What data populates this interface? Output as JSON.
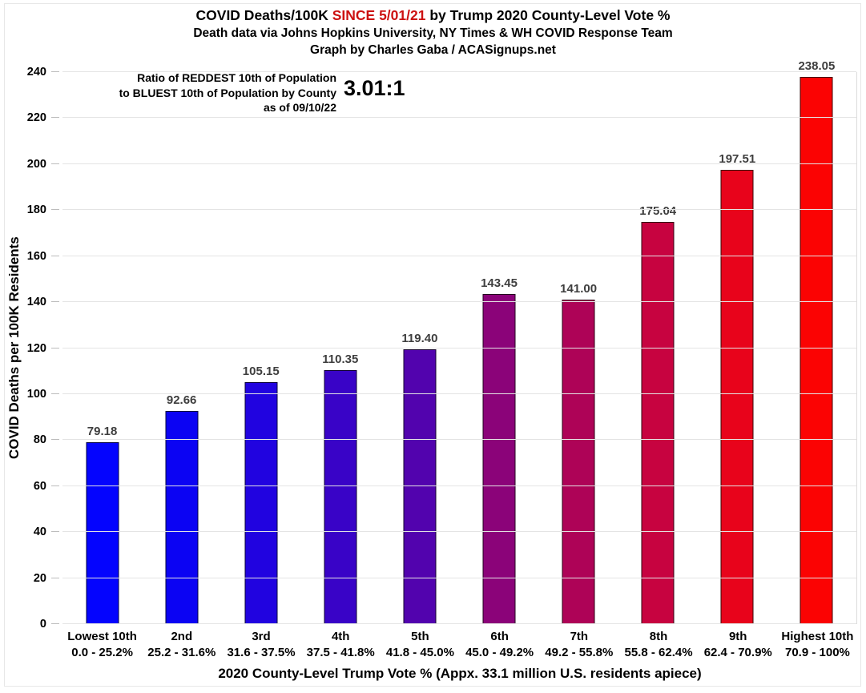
{
  "header": {
    "title_prefix": "COVID Deaths/100K ",
    "title_highlight": "SINCE 5/01/21",
    "title_suffix": " by Trump 2020 County-Level Vote %",
    "subtitle": "Death data via Johns Hopkins University, NY Times & WH COVID Response Team",
    "credit": "Graph by Charles Gaba / ACASignups.net"
  },
  "annotation": {
    "line1": "Ratio of REDDEST 10th of Population",
    "line2": "to BLUEST 10th of Population by County",
    "line3": "as of 09/10/22",
    "ratio": "3.01:1"
  },
  "colors": {
    "title_highlight": "#cc1111",
    "value_label": "#3e3e3e",
    "gridline": "#e4e4e4",
    "blue_end": "#0404fe",
    "red_end": "#fb0303"
  },
  "chart_data": {
    "type": "bar",
    "title": "COVID Deaths/100K SINCE 5/01/21 by Trump 2020 County-Level Vote %",
    "subtitle": "Death data via Johns Hopkins University, NY Times & WH COVID Response Team",
    "credit": "Graph by Charles Gaba / ACASignups.net",
    "xlabel": "2020 County-Level Trump Vote % (Appx. 33.1 million U.S. residents apiece)",
    "ylabel": "COVID Deaths per 100K Residents",
    "ylim": [
      0,
      240
    ],
    "ytick_step": 20,
    "grid": true,
    "legend": false,
    "categories": [
      "Lowest 10th",
      "2nd",
      "3rd",
      "4th",
      "5th",
      "6th",
      "7th",
      "8th",
      "9th",
      "Highest 10th"
    ],
    "category_ranges": [
      "0.0 - 25.2%",
      "25.2 - 31.6%",
      "31.6 - 37.5%",
      "37.5 - 41.8%",
      "41.8 - 45.0%",
      "45.0 - 49.2%",
      "49.2 - 55.8%",
      "55.8 - 62.4%",
      "62.4 - 70.9%",
      "70.9 - 100%"
    ],
    "values": [
      79.18,
      92.66,
      105.15,
      110.35,
      119.4,
      143.45,
      141.0,
      175.04,
      197.51,
      238.05
    ],
    "value_labels": [
      "79.18",
      "92.66",
      "105.15",
      "110.35",
      "119.40",
      "143.45",
      "141.00",
      "175.04",
      "197.51",
      "238.05"
    ],
    "bar_colors": [
      "#0404fe",
      "#0b03f3",
      "#2103e0",
      "#3903c7",
      "#5203ae",
      "#8b0379",
      "#ae0357",
      "#c70340",
      "#e8031b",
      "#fb0303"
    ]
  }
}
